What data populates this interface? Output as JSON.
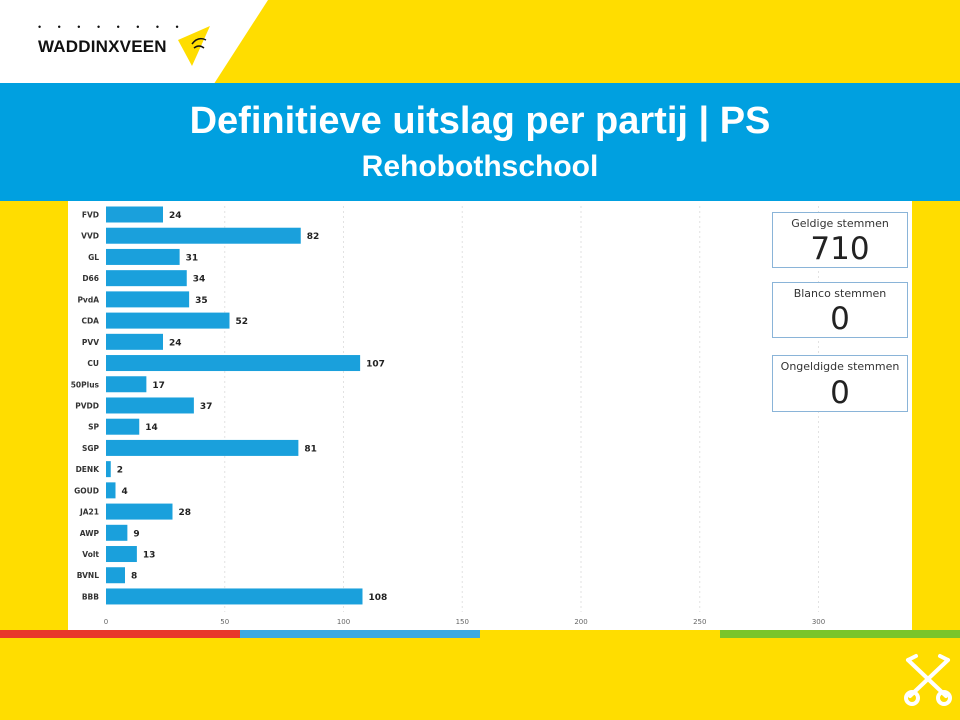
{
  "logo": {
    "text": "WADDINXVEEN",
    "dots": "• • • • • • • •"
  },
  "header": {
    "title": "Definitieve uitslag per partij | PS",
    "subtitle": "Rehobothschool"
  },
  "cards": [
    {
      "label": "Geldige stemmen",
      "value": "710"
    },
    {
      "label": "Blanco stemmen",
      "value": "0"
    },
    {
      "label": "Ongeldigde stemmen",
      "value": "0"
    }
  ],
  "colors": {
    "bar": "#1aa0dc",
    "banner": "#00a0e0",
    "background": "#ffdd00",
    "stripe_red": "#e8392b",
    "stripe_blue": "#3ca9e0",
    "stripe_yellow": "#ffdd00",
    "stripe_green": "#7ac52b"
  },
  "chart_data": {
    "type": "bar",
    "orientation": "horizontal",
    "categories": [
      "FVD",
      "VVD",
      "GL",
      "D66",
      "PvdA",
      "CDA",
      "PVV",
      "CU",
      "50Plus",
      "PVDD",
      "SP",
      "SGP",
      "DENK",
      "GOUD",
      "JA21",
      "AWP",
      "Volt",
      "BVNL",
      "BBB"
    ],
    "values": [
      24,
      82,
      31,
      34,
      35,
      52,
      24,
      107,
      17,
      37,
      14,
      81,
      2,
      4,
      28,
      9,
      13,
      8,
      108
    ],
    "xticks": [
      0,
      50,
      100,
      150,
      200,
      250,
      300
    ],
    "xlim": [
      0,
      340
    ],
    "grid": true,
    "title": "",
    "xlabel": "",
    "ylabel": ""
  }
}
